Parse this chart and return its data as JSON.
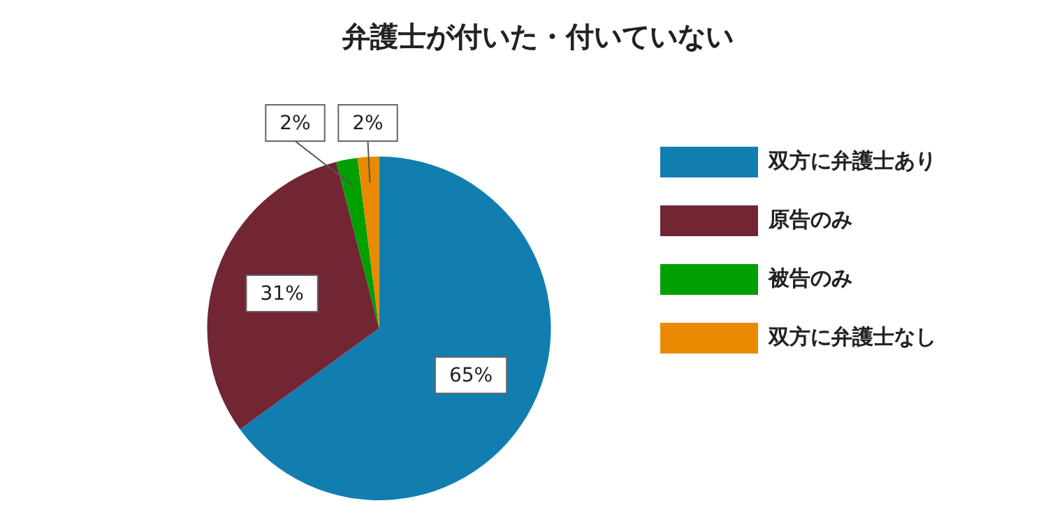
{
  "chart_data": {
    "type": "pie",
    "title": "弁護士が付いた・付いていない",
    "categories": [
      "双方に弁護士あり",
      "原告のみ",
      "被告のみ",
      "双方に弁護士なし"
    ],
    "values": [
      65,
      31,
      2,
      2
    ],
    "colors": [
      "#127eb0",
      "#722533",
      "#00a000",
      "#e98a00"
    ],
    "value_labels": [
      "65%",
      "31%",
      "2%",
      "2%"
    ],
    "legend": "right"
  }
}
